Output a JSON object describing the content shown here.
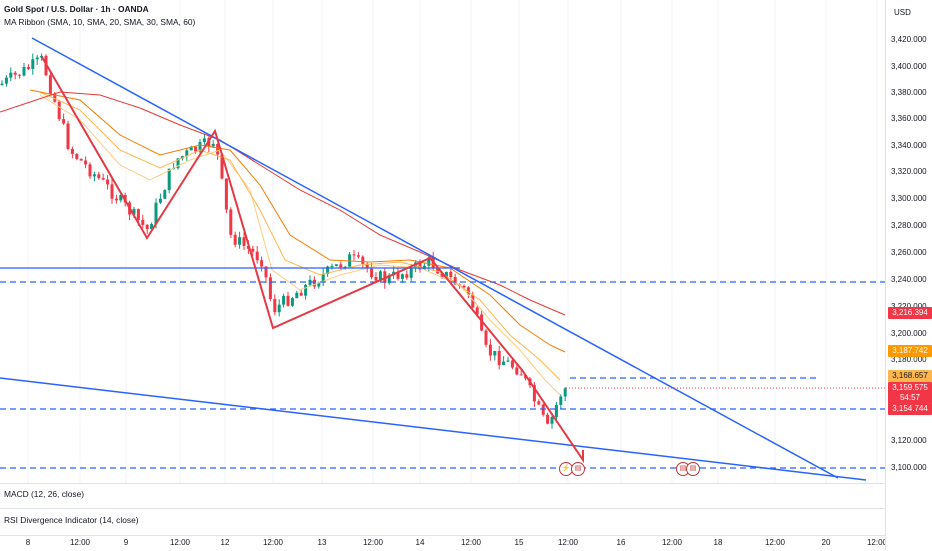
{
  "symbol": {
    "title": "Gold Spot / U.S. Dollar · 1h · OANDA",
    "indicator": "MA Ribbon (SMA, 10, SMA, 20, SMA, 30, SMA, 60)"
  },
  "panes": {
    "macd": "MACD (12, 26, close)",
    "rsi": "RSI Divergence Indicator (14, close)"
  },
  "currency": "USD",
  "price_ticks": [
    "3,420.000",
    "3,400.000",
    "3,380.000",
    "3,360.000",
    "3,340.000",
    "3,320.000",
    "3,300.000",
    "3,280.000",
    "3,260.000",
    "3,240.000",
    "3,220.000",
    "3,200.000",
    "3,180.000",
    "3,120.000",
    "3,100.000"
  ],
  "price_tags": [
    {
      "label": "3,216.394",
      "color": "#f23645"
    },
    {
      "label": "3,187.742",
      "color": "#ff9800"
    },
    {
      "label": "3,168.657",
      "color": "#ffb74d",
      "text": "#131722"
    },
    {
      "label": "3,159.575",
      "color": "#f23645"
    },
    {
      "label": "54:57",
      "color": "#f23645"
    },
    {
      "label": "3,154.744",
      "color": "#f23645"
    }
  ],
  "time_ticks": [
    "8",
    "12:00",
    "9",
    "12:00",
    "12",
    "12:00",
    "13",
    "12:00",
    "14",
    "12:00",
    "15",
    "12:00",
    "16",
    "12:00",
    "18",
    "12:00",
    "20",
    "12:00"
  ],
  "colors": {
    "candle_up": "#089981",
    "candle_down": "#f23645",
    "trendline": "#2962ff",
    "zigzag": "#e53945",
    "ma10": "#ffcc80",
    "ma20": "#ffb74d",
    "ma30": "#f57c00",
    "ma60": "#e53935"
  },
  "events": [
    "flash-icon",
    "us-flag-icon",
    "us-flag-icon",
    "us-flag-icon"
  ]
}
